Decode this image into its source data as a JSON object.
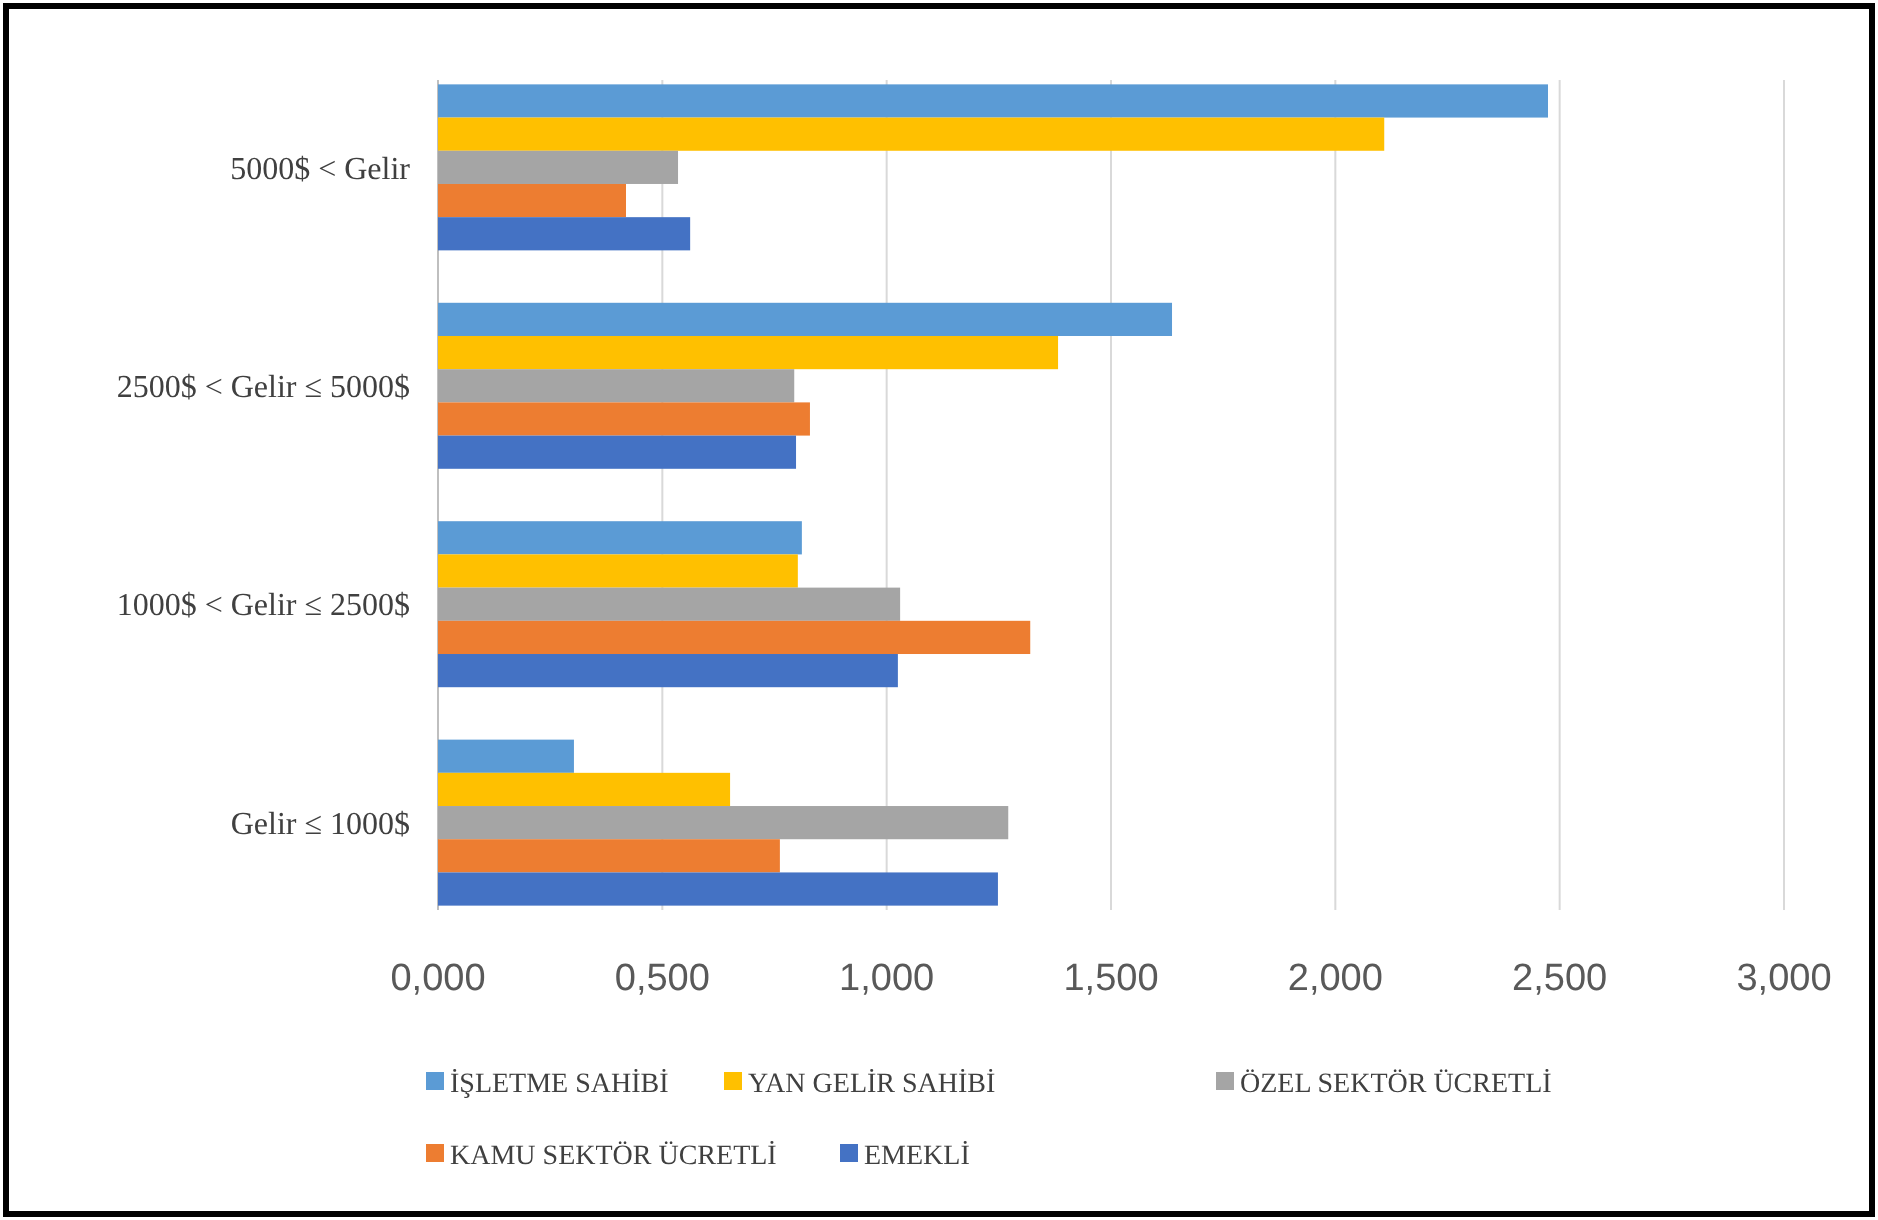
{
  "chart_data": {
    "type": "bar",
    "orientation": "horizontal",
    "categories": [
      "5000$ < Gelir",
      "2500$ < Gelir ≤ 5000$",
      "1000$ < Gelir ≤ 2500$",
      "Gelir ≤ 1000$"
    ],
    "series": [
      {
        "name": "İŞLETME SAHİBİ",
        "color": "#5b9bd5",
        "values": [
          2.474,
          1.636,
          0.811,
          0.303
        ]
      },
      {
        "name": "YAN GELİR SAHİBİ",
        "color": "#ffc000",
        "values": [
          2.109,
          1.382,
          0.802,
          0.651
        ]
      },
      {
        "name": "ÖZEL SEKTÖR ÜCRETLİ",
        "color": "#a5a5a5",
        "values": [
          0.535,
          0.794,
          1.03,
          1.271
        ]
      },
      {
        "name": "KAMU SEKTÖR ÜCRETLİ",
        "color": "#ed7d31",
        "values": [
          0.419,
          0.829,
          1.32,
          0.762
        ]
      },
      {
        "name": "EMEKLİ",
        "color": "#4472c4",
        "values": [
          0.562,
          0.798,
          1.025,
          1.248
        ]
      }
    ],
    "xlim": [
      0,
      3
    ],
    "xticks": [
      {
        "value": 0,
        "label": "0,000"
      },
      {
        "value": 0.5,
        "label": "0,500"
      },
      {
        "value": 1,
        "label": "1,000"
      },
      {
        "value": 1.5,
        "label": "1,500"
      },
      {
        "value": 2,
        "label": "2,000"
      },
      {
        "value": 2.5,
        "label": "2,500"
      },
      {
        "value": 3,
        "label": "3,000"
      }
    ],
    "grid": "x",
    "legend": "bottom"
  }
}
